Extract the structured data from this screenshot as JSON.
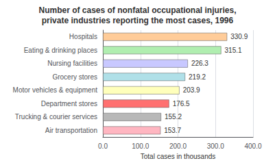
{
  "chart_data": {
    "type": "bar",
    "title": "Number of cases of nonfatal occupational injuries,",
    "subtitle": "private industries reporting the most cases, 1996",
    "categories": [
      "Air transportation",
      "Trucking & courier services",
      "Department stores",
      "Motor vehicles & equipment",
      "Grocery stores",
      "Nursing facilities",
      "Eating & drinking places",
      "Hospitals"
    ],
    "values": [
      153.7,
      155.2,
      176.5,
      203.9,
      219.2,
      226.3,
      315.1,
      330.9
    ],
    "colors": [
      "#FFB6C1",
      "#B8B8B8",
      "#FF7070",
      "#FFFFBB",
      "#B0E0E8",
      "#C8C8FF",
      "#B0EEB0",
      "#FFCC99"
    ],
    "orientation": "horizontal",
    "xlabel": "Total cases in thousands",
    "xlim": [
      0,
      400
    ],
    "xticks": [
      {
        "value": 0,
        "label": "0.0"
      },
      {
        "value": 100,
        "label": "100.0"
      },
      {
        "value": 200,
        "label": "200.0"
      },
      {
        "value": 300,
        "label": "300.0"
      },
      {
        "value": 400,
        "label": "400.0"
      }
    ],
    "grid": true,
    "data_labels": true
  }
}
